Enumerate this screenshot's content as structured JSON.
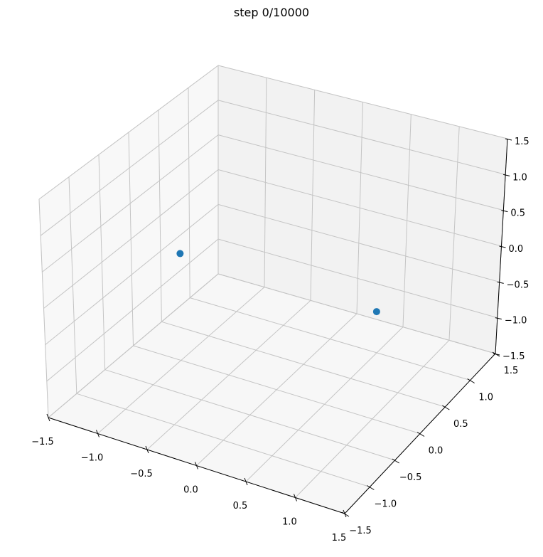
{
  "chart_data": {
    "type": "scatter3d",
    "title": "step 0/10000",
    "xlim": [
      -1.5,
      1.5
    ],
    "ylim": [
      -1.5,
      1.5
    ],
    "zlim": [
      -1.5,
      1.5
    ],
    "xticks": [
      "−1.5",
      "−1.0",
      "−0.5",
      "0.0",
      "0.5",
      "1.0",
      "1.5"
    ],
    "yticks": [
      "−1.5",
      "−1.0",
      "−0.5",
      "0.0",
      "0.5",
      "1.0",
      "1.5"
    ],
    "zticks": [
      "−1.5",
      "−1.0",
      "−0.5",
      "0.0",
      "0.5",
      "1.0",
      "1.5"
    ],
    "tick_values": [
      -1.5,
      -1.0,
      -0.5,
      0.0,
      0.5,
      1.0,
      1.5
    ],
    "grid": true,
    "points": [
      {
        "x": -1.0,
        "y": 0.0,
        "z": 0.0
      },
      {
        "x": 1.0,
        "y": 0.0,
        "z": 0.0
      }
    ],
    "colors": {
      "point": "#1f77b4",
      "grid": "#c4c4c4",
      "floor": "#f7f7f7",
      "back_wall": "#f2f2f2",
      "left_wall": "#f8f8f8"
    }
  }
}
